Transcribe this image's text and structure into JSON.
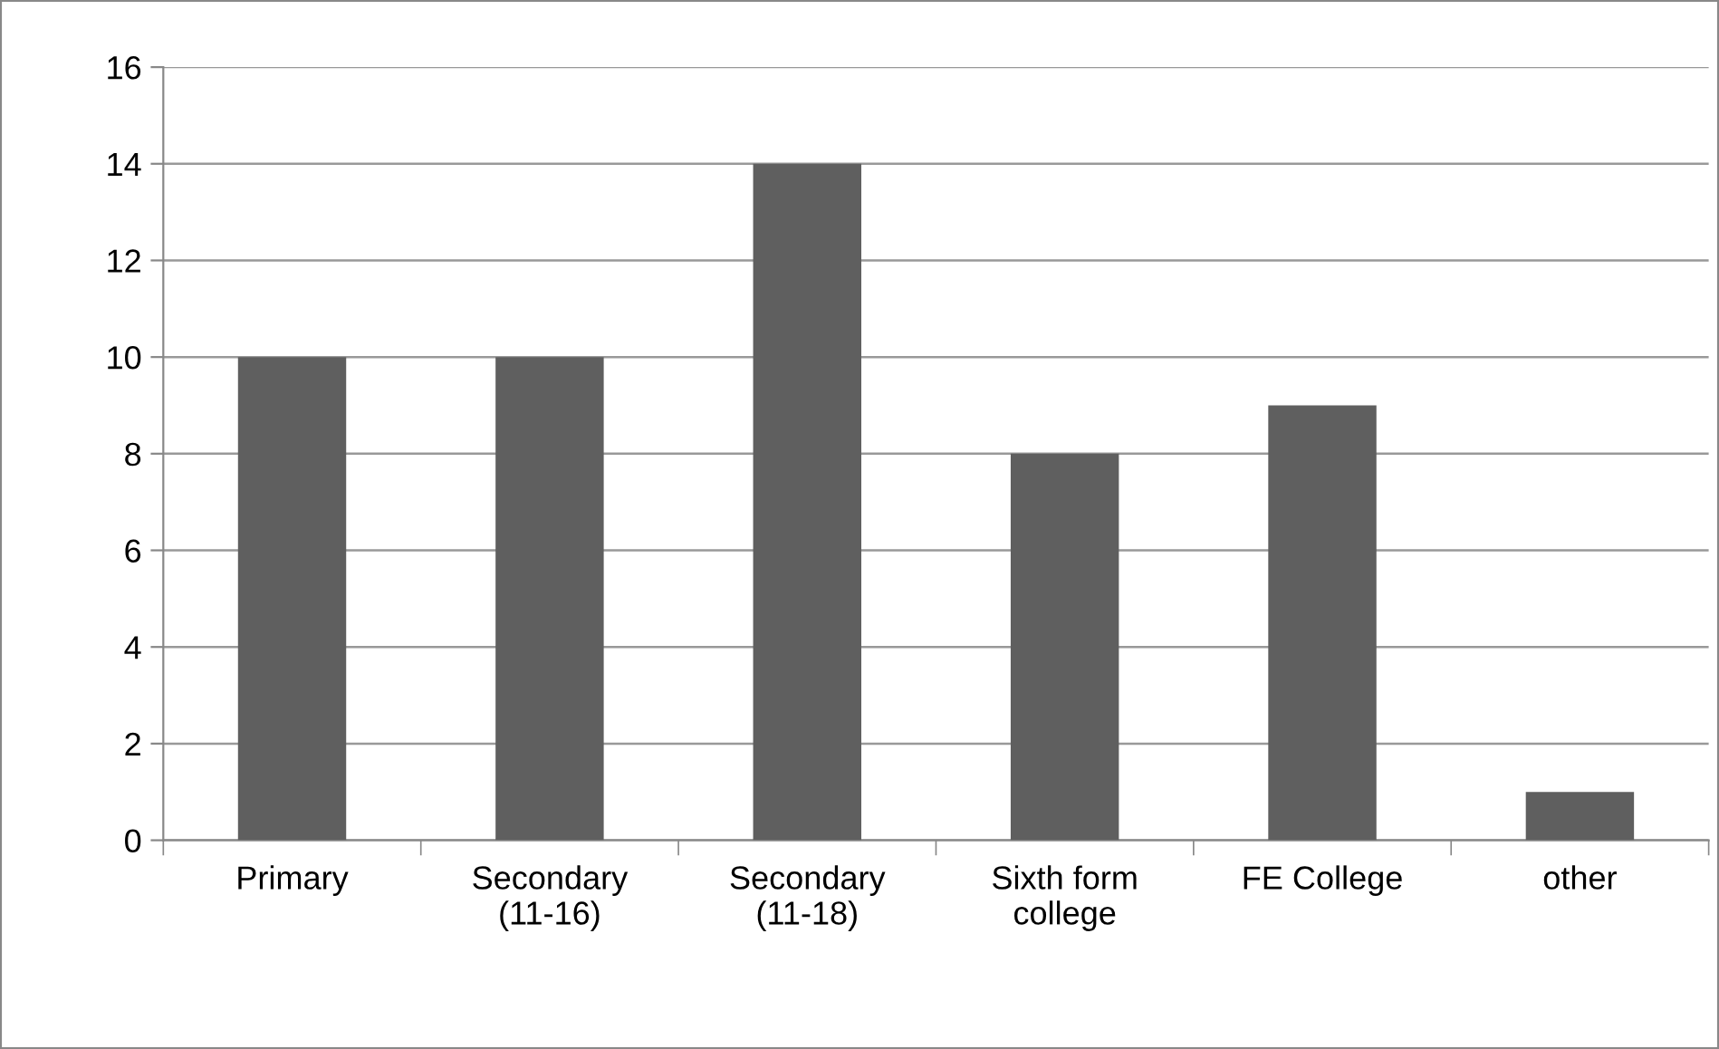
{
  "chart_data": {
    "type": "bar",
    "categories": [
      "Primary",
      "Secondary\n(11-16)",
      "Secondary\n(11-18)",
      "Sixth form\ncollege",
      "FE College",
      "other"
    ],
    "values": [
      10,
      10,
      14,
      8,
      9,
      1
    ],
    "color": "#5f5f5f",
    "ylim": [
      0,
      16
    ],
    "yticks": [
      0,
      2,
      4,
      6,
      8,
      10,
      12,
      14,
      16
    ],
    "grid": "y",
    "legend": false
  }
}
